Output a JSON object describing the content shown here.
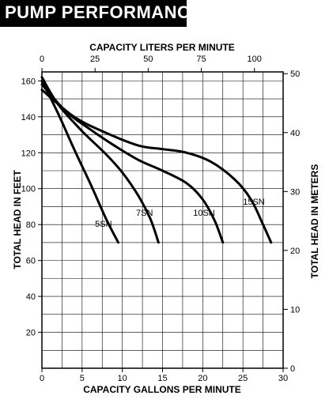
{
  "title": "PUMP PERFORMANCE",
  "chart_data": {
    "type": "line",
    "title": "PUMP PERFORMANCE",
    "xlabel": "CAPACITY GALLONS PER MINUTE",
    "ylabel": "TOTAL HEAD IN FEET",
    "x2label": "CAPACITY LITERS PER MINUTE",
    "y2label": "TOTAL HEAD IN METERS",
    "xlim": [
      0,
      30
    ],
    "ylim": [
      0,
      165
    ],
    "x2lim": [
      0,
      113.5
    ],
    "y2lim": [
      0,
      50.3
    ],
    "grid": true,
    "x_ticks": [
      "0",
      "5",
      "10",
      "15",
      "20",
      "25",
      "30"
    ],
    "y_ticks": [
      "20",
      "40",
      "60",
      "80",
      "100",
      "120",
      "140",
      "160"
    ],
    "x2_ticks": [
      "0",
      "25",
      "50",
      "75",
      "100"
    ],
    "y2_ticks": [
      "0",
      "10",
      "20",
      "30",
      "40",
      "50"
    ],
    "series": [
      {
        "name": "5SN",
        "x": [
          0,
          2,
          4,
          6,
          8,
          9.5
        ],
        "y": [
          160,
          142,
          122,
          103,
          83,
          70
        ]
      },
      {
        "name": "7SN",
        "x": [
          0,
          2,
          5,
          8,
          10,
          12,
          13.5,
          14.5
        ],
        "y": [
          162,
          147,
          132,
          119,
          109,
          96,
          83,
          70
        ]
      },
      {
        "name": "10SN",
        "x": [
          0,
          3,
          6,
          9,
          12,
          15,
          18,
          20,
          21.5,
          22.5
        ],
        "y": [
          158,
          143,
          133,
          124,
          116,
          110,
          103,
          94,
          82,
          70
        ]
      },
      {
        "name": "15SN",
        "x": [
          0,
          4,
          8,
          12,
          15,
          18,
          21,
          24,
          26,
          27.5,
          28.5
        ],
        "y": [
          155,
          140,
          131,
          124,
          122,
          120,
          115,
          105,
          94,
          80,
          70
        ]
      }
    ]
  }
}
